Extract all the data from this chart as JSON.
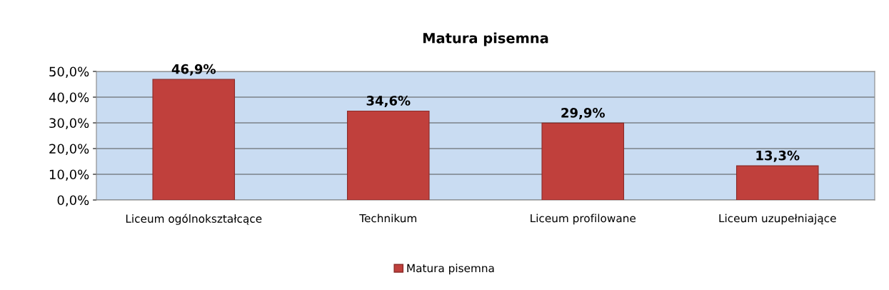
{
  "chart_data": {
    "type": "bar",
    "title": "Matura pisemna",
    "categories": [
      "Liceum ogólnokształcące",
      "Technikum",
      "Liceum profilowane",
      "Liceum uzupełniające"
    ],
    "series": [
      {
        "name": "Matura pisemna",
        "color": "#c0403c",
        "values": [
          46.9,
          34.6,
          29.9,
          13.3
        ],
        "value_labels": [
          "46,9%",
          "34,6%",
          "29,9%",
          "13,3%"
        ]
      }
    ],
    "ylim": [
      0,
      50
    ],
    "yticks": [
      {
        "value": 0,
        "label": "0,0%"
      },
      {
        "value": 10,
        "label": "10,0%"
      },
      {
        "value": 20,
        "label": "20,0%"
      },
      {
        "value": 30,
        "label": "30,0%"
      },
      {
        "value": 40,
        "label": "40,0%"
      },
      {
        "value": 50,
        "label": "50,0%"
      }
    ],
    "grid": "y",
    "legend": "bottom"
  }
}
